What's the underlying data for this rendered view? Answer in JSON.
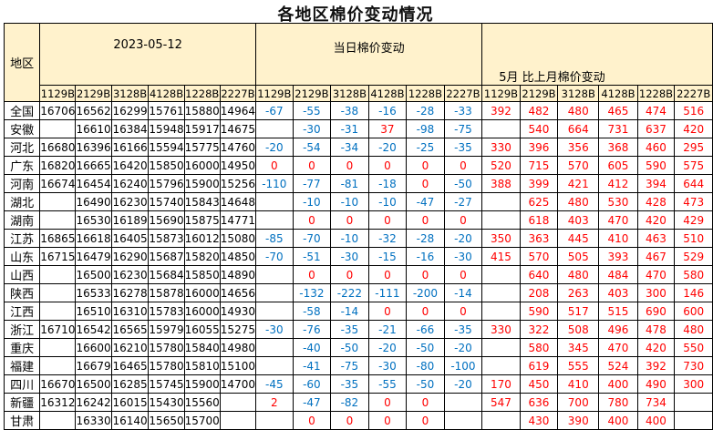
{
  "title": "各地区棉价变动情况",
  "header": {
    "region": "地区",
    "date": "2023-05-12",
    "daily_change": "当日棉价变动",
    "monthly_change": "5月 比上月棉价变动",
    "contracts": [
      "1129B",
      "2129B",
      "3128B",
      "4128B",
      "1228B",
      "2227B"
    ]
  },
  "colors": {
    "header_bg": "#fff2cc",
    "negative": "#0070c0",
    "non_negative": "#ff0000"
  },
  "rows": [
    {
      "region": "全国",
      "price": [
        16706,
        16562,
        16299,
        15761,
        15880,
        14964
      ],
      "daily": [
        -67,
        -55,
        -38,
        -16,
        -28,
        -33
      ],
      "monthly": [
        392,
        482,
        480,
        465,
        474,
        516
      ]
    },
    {
      "region": "安徽",
      "price": [
        null,
        16610,
        16384,
        15948,
        15917,
        14675
      ],
      "daily": [
        null,
        -30,
        -31,
        37,
        -98,
        -75
      ],
      "monthly": [
        null,
        540,
        664,
        731,
        637,
        420
      ]
    },
    {
      "region": "河北",
      "price": [
        16680,
        16396,
        16166,
        15594,
        15775,
        14760
      ],
      "daily": [
        -20,
        -54,
        -34,
        -20,
        -25,
        -35
      ],
      "monthly": [
        330,
        396,
        356,
        368,
        460,
        295
      ]
    },
    {
      "region": "广东",
      "price": [
        16820,
        16665,
        16420,
        15850,
        16000,
        14950
      ],
      "daily": [
        0,
        0,
        0,
        0,
        0,
        0
      ],
      "monthly": [
        520,
        715,
        570,
        605,
        590,
        575
      ]
    },
    {
      "region": "河南",
      "price": [
        16674,
        16454,
        16240,
        15796,
        15900,
        15256
      ],
      "daily": [
        -110,
        -77,
        -81,
        -18,
        0,
        -50
      ],
      "monthly": [
        388,
        399,
        421,
        412,
        394,
        644
      ]
    },
    {
      "region": "湖北",
      "price": [
        null,
        16490,
        16230,
        15740,
        15843,
        14648
      ],
      "daily": [
        null,
        -10,
        -10,
        -10,
        -47,
        -27
      ],
      "monthly": [
        null,
        625,
        480,
        530,
        428,
        473
      ]
    },
    {
      "region": "湖南",
      "price": [
        null,
        16530,
        16189,
        15690,
        15875,
        14771
      ],
      "daily": [
        null,
        0,
        0,
        0,
        0,
        0
      ],
      "monthly": [
        null,
        618,
        403,
        470,
        420,
        429
      ]
    },
    {
      "region": "江苏",
      "price": [
        16865,
        16618,
        16405,
        15873,
        16012,
        15080
      ],
      "daily": [
        -85,
        -70,
        -10,
        -32,
        -28,
        -20
      ],
      "monthly": [
        350,
        363,
        445,
        410,
        463,
        510
      ]
    },
    {
      "region": "山东",
      "price": [
        16715,
        16479,
        16290,
        15687,
        15820,
        14850
      ],
      "daily": [
        -70,
        -51,
        -30,
        -15,
        -16,
        -30
      ],
      "monthly": [
        415,
        570,
        505,
        393,
        467,
        529
      ]
    },
    {
      "region": "山西",
      "price": [
        null,
        16500,
        16230,
        15684,
        15850,
        14890
      ],
      "daily": [
        null,
        0,
        0,
        0,
        0,
        0
      ],
      "monthly": [
        null,
        640,
        480,
        484,
        470,
        580
      ]
    },
    {
      "region": "陕西",
      "price": [
        null,
        16533,
        16278,
        15878,
        16000,
        14656
      ],
      "daily": [
        null,
        -132,
        -222,
        -111,
        -200,
        -14
      ],
      "monthly": [
        null,
        208,
        263,
        403,
        300,
        146
      ]
    },
    {
      "region": "江西",
      "price": [
        null,
        16510,
        16310,
        15783,
        16000,
        14930
      ],
      "daily": [
        null,
        -58,
        -14,
        0,
        0,
        0
      ],
      "monthly": [
        null,
        590,
        517,
        515,
        690,
        600
      ]
    },
    {
      "region": "浙江",
      "price": [
        16710,
        16542,
        16565,
        15979,
        16055,
        15275
      ],
      "daily": [
        -30,
        -76,
        -35,
        -21,
        -66,
        -35
      ],
      "monthly": [
        330,
        322,
        508,
        496,
        478,
        480
      ]
    },
    {
      "region": "重庆",
      "price": [
        null,
        16600,
        16210,
        15780,
        15840,
        14980
      ],
      "daily": [
        null,
        -40,
        -50,
        -20,
        -50,
        -20
      ],
      "monthly": [
        null,
        580,
        345,
        470,
        420,
        550
      ]
    },
    {
      "region": "福建",
      "price": [
        null,
        16679,
        16465,
        15780,
        15810,
        15100
      ],
      "daily": [
        null,
        -41,
        -75,
        -30,
        -80,
        -100
      ],
      "monthly": [
        null,
        619,
        555,
        524,
        392,
        730
      ]
    },
    {
      "region": "四川",
      "price": [
        16670,
        16500,
        16285,
        15745,
        15900,
        14700
      ],
      "daily": [
        -45,
        -60,
        -35,
        -55,
        -50,
        -20
      ],
      "monthly": [
        170,
        450,
        410,
        400,
        490,
        300
      ]
    },
    {
      "region": "新疆",
      "price": [
        16312,
        16242,
        16015,
        15430,
        15560,
        null
      ],
      "daily": [
        2,
        -47,
        -82,
        0,
        0,
        null
      ],
      "monthly": [
        547,
        636,
        700,
        780,
        734,
        null
      ]
    },
    {
      "region": "甘肃",
      "price": [
        null,
        16330,
        16140,
        15650,
        15700,
        null
      ],
      "daily": [
        null,
        0,
        0,
        0,
        0,
        null
      ],
      "monthly": [
        null,
        430,
        390,
        400,
        400,
        null
      ]
    }
  ]
}
